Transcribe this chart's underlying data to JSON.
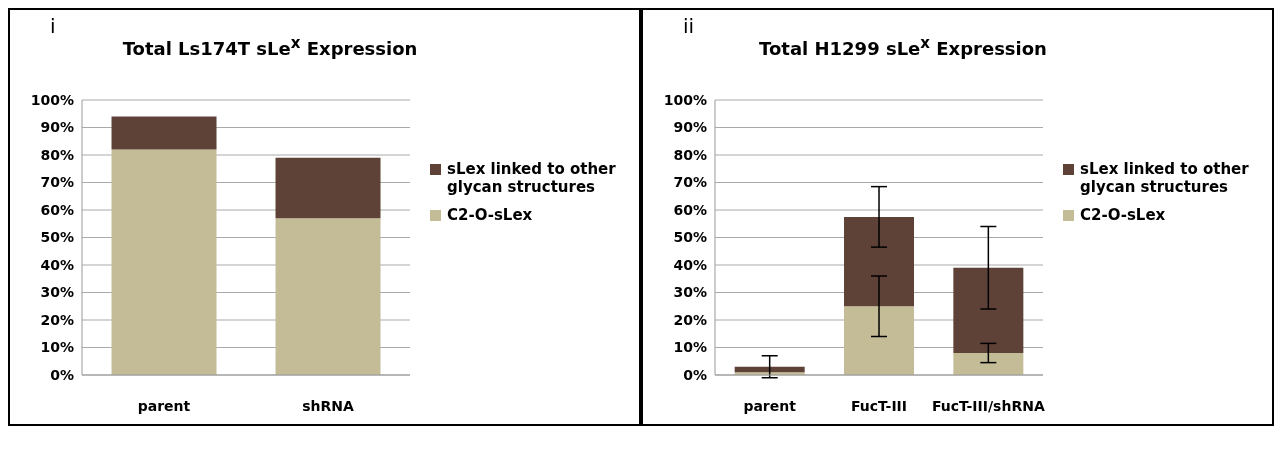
{
  "chart_data": [
    {
      "type": "bar",
      "title": "Total Ls174T sLe$^{x}$ Expression",
      "annotations": [
        "i"
      ],
      "categories": [
        "parent",
        "shRNA"
      ],
      "stacked": true,
      "ylim": [
        0,
        100
      ],
      "yticks": [
        {
          "value": 0,
          "label": "0%"
        },
        {
          "value": 10,
          "label": "10%"
        },
        {
          "value": 20,
          "label": "20%"
        },
        {
          "value": 30,
          "label": "30%"
        },
        {
          "value": 40,
          "label": "40%"
        },
        {
          "value": 50,
          "label": "50%"
        },
        {
          "value": 60,
          "label": "60%"
        },
        {
          "value": 70,
          "label": "70%"
        },
        {
          "value": 80,
          "label": "80%"
        },
        {
          "value": 90,
          "label": "90%"
        },
        {
          "value": 100,
          "label": "100%"
        }
      ],
      "grid": "y",
      "legend": "right",
      "series": [
        {
          "name": "C2-O-sLex",
          "color": "#c4bc96",
          "values": [
            82,
            57
          ]
        },
        {
          "name": "sLex linked to other glycan structures",
          "color": "#5e4237",
          "values": [
            12,
            22
          ]
        }
      ]
    },
    {
      "type": "bar",
      "title": "Total H1299 sLe$^{x}$ Expression",
      "annotations": [
        "ii"
      ],
      "categories": [
        "parent",
        "FucT-III",
        "FucT-III/shRNA"
      ],
      "stacked": true,
      "ylim": [
        0,
        100
      ],
      "yticks": [
        {
          "value": 0,
          "label": "0%"
        },
        {
          "value": 10,
          "label": "10%"
        },
        {
          "value": 20,
          "label": "20%"
        },
        {
          "value": 30,
          "label": "30%"
        },
        {
          "value": 40,
          "label": "40%"
        },
        {
          "value": 50,
          "label": "50%"
        },
        {
          "value": 60,
          "label": "60%"
        },
        {
          "value": 70,
          "label": "70%"
        },
        {
          "value": 80,
          "label": "80%"
        },
        {
          "value": 90,
          "label": "90%"
        },
        {
          "value": 100,
          "label": "100%"
        }
      ],
      "grid": "y",
      "legend": "right",
      "series": [
        {
          "name": "C2-O-sLex",
          "color": "#c4bc96",
          "values": [
            1,
            25,
            8
          ],
          "errors": [
            null,
            11,
            3.5
          ]
        },
        {
          "name": "sLex linked to other glycan structures",
          "color": "#5e4237",
          "values": [
            2,
            32.5,
            31
          ],
          "errors": [
            4,
            11,
            15
          ]
        }
      ]
    }
  ]
}
